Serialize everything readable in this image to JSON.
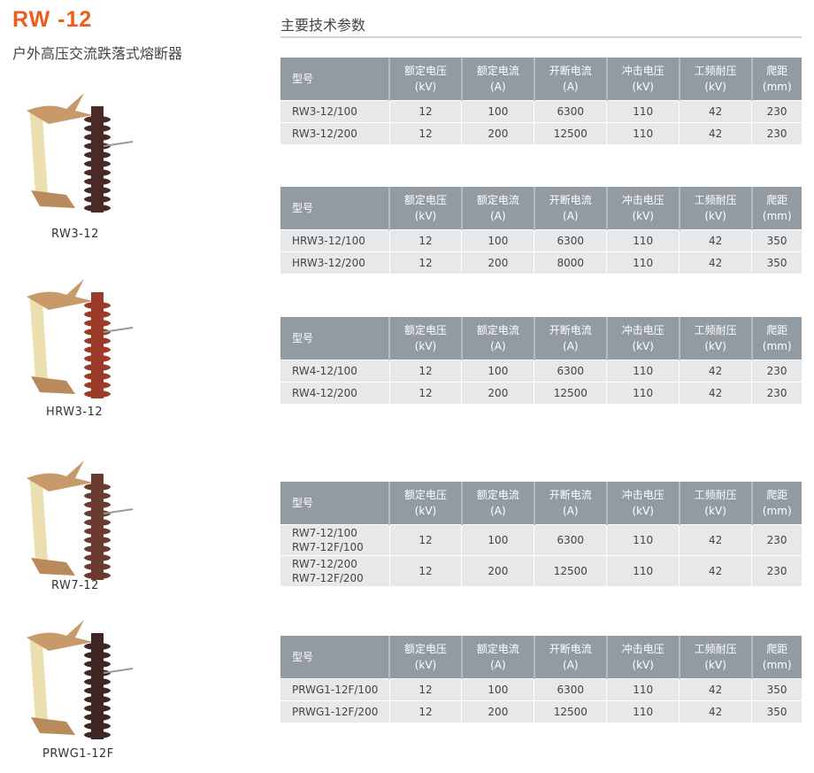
{
  "header": {
    "title": "RW -12",
    "subtitle": "户外高压交流跌落式熔断器",
    "section": "主要技术参数"
  },
  "colors": {
    "accent": "#f05a1a",
    "table_header": "#939ba2",
    "row": "#e7e8e9"
  },
  "columns": [
    [
      "型号",
      ""
    ],
    [
      "额定电压",
      "(kV)"
    ],
    [
      "额定电流",
      "(A)"
    ],
    [
      "开断电流",
      "(A)"
    ],
    [
      "冲击电压",
      "(kV)"
    ],
    [
      "工频耐压",
      "(kV)"
    ],
    [
      "爬距",
      "(mm)"
    ]
  ],
  "products": [
    {
      "label": "RW3-12",
      "rows": [
        [
          "RW3-12/100",
          "12",
          "100",
          "6300",
          "110",
          "42",
          "230"
        ],
        [
          "RW3-12/200",
          "12",
          "200",
          "12500",
          "110",
          "42",
          "230"
        ]
      ]
    },
    {
      "label": "HRW3-12",
      "rows": [
        [
          "HRW3-12/100",
          "12",
          "100",
          "6300",
          "110",
          "42",
          "350"
        ],
        [
          "HRW3-12/200",
          "12",
          "200",
          "8000",
          "110",
          "42",
          "350"
        ]
      ]
    },
    {
      "label": "",
      "rows": [
        [
          "RW4-12/100",
          "12",
          "100",
          "6300",
          "110",
          "42",
          "230"
        ],
        [
          "RW4-12/200",
          "12",
          "200",
          "12500",
          "110",
          "42",
          "230"
        ]
      ]
    },
    {
      "label": "RW7-12",
      "rows": [
        [
          "RW7-12/100\nRW7-12F/100",
          "12",
          "100",
          "6300",
          "110",
          "42",
          "230"
        ],
        [
          "RW7-12/200\nRW7-12F/200",
          "12",
          "200",
          "12500",
          "110",
          "42",
          "230"
        ]
      ]
    },
    {
      "label": "PRWG1-12F",
      "rows": [
        [
          "PRWG1-12F/100",
          "12",
          "100",
          "6300",
          "110",
          "42",
          "350"
        ],
        [
          "PRWG1-12F/200",
          "12",
          "200",
          "12500",
          "110",
          "42",
          "350"
        ]
      ]
    }
  ]
}
